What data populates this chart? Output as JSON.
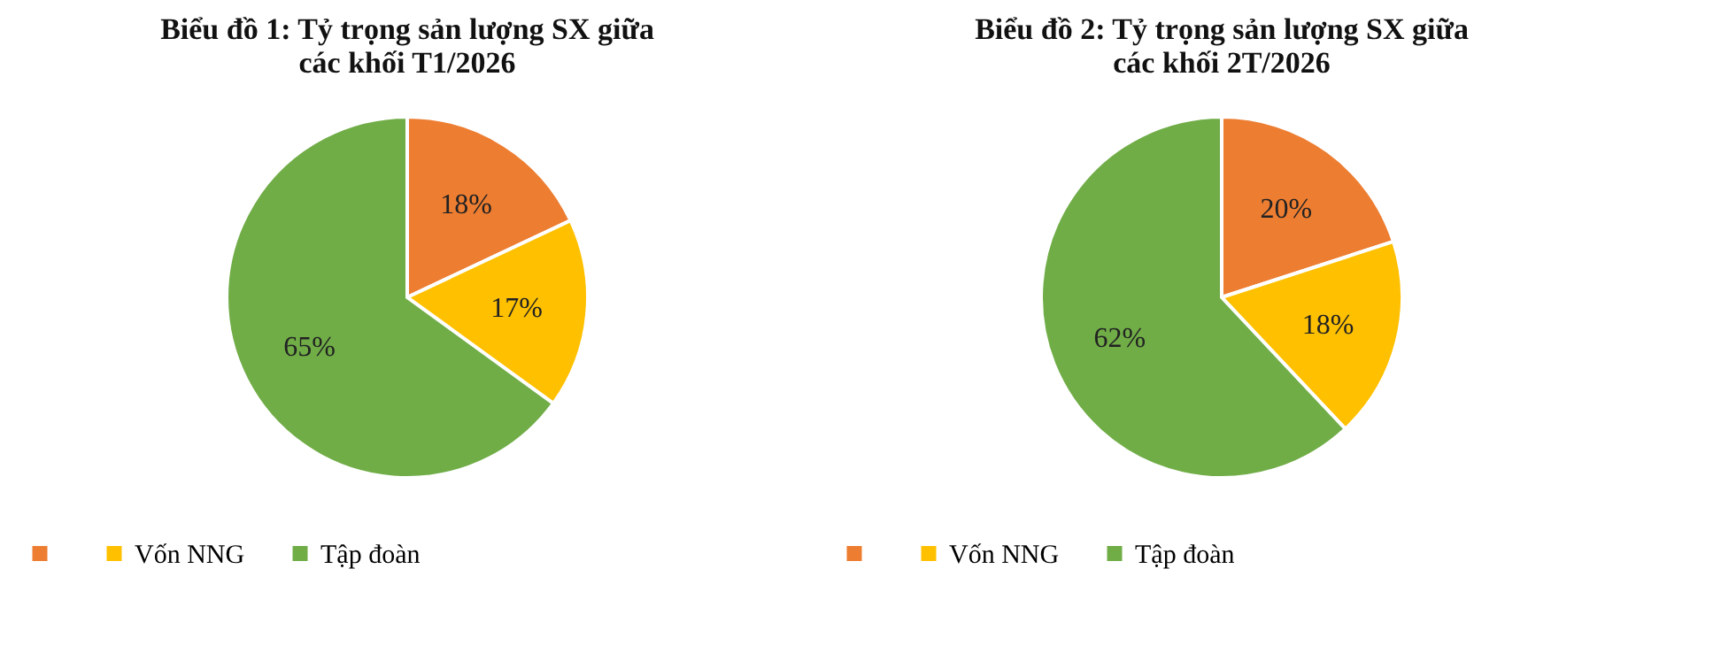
{
  "chart_data": [
    {
      "type": "pie",
      "title": [
        "Biểu đồ 1: Tỷ trọng sản lượng  SX giữa",
        "các khối  T1/2026"
      ],
      "categories": [
        null,
        "Vốn NNG",
        "Tập đoàn"
      ],
      "values": [
        18,
        17,
        65
      ],
      "colors": [
        "#ed7d31",
        "#ffc000",
        "#70ad47"
      ],
      "value_labels": [
        "18%",
        "17%",
        "65%"
      ],
      "legend": "bottom"
    },
    {
      "type": "pie",
      "title": [
        "Biểu đồ 2: Tỷ trọng sản lượng  SX giữa",
        "các khối 2T/2026"
      ],
      "categories": [
        null,
        "Vốn NNG",
        "Tập đoàn"
      ],
      "values": [
        20,
        18,
        62
      ],
      "colors": [
        "#ed7d31",
        "#ffc000",
        "#70ad47"
      ],
      "value_labels": [
        "20%",
        "18%",
        "62%"
      ],
      "legend": "bottom"
    }
  ]
}
